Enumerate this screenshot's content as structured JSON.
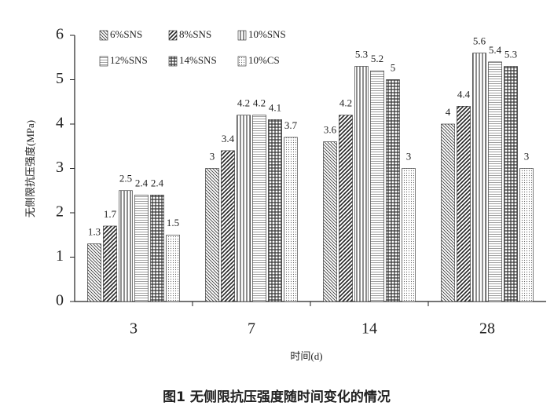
{
  "chart_data": {
    "type": "bar",
    "caption": "图1  无侧限抗压强度随时间变化的情况",
    "x_label": "时间(d)",
    "y_label": "无侧限抗压强度(MPa)",
    "categories": [
      "3",
      "7",
      "14",
      "28"
    ],
    "series": [
      {
        "name": "6%SNS",
        "color": "#222222",
        "values": [
          1.3,
          3,
          3.6,
          4
        ]
      },
      {
        "name": "8%SNS",
        "color": "#222222",
        "values": [
          1.7,
          3.4,
          4.2,
          4.4
        ]
      },
      {
        "name": "10%SNS",
        "color": "#222222",
        "values": [
          2.5,
          4.2,
          5.3,
          5.6
        ]
      },
      {
        "name": "12%SNS",
        "color": "#222222",
        "values": [
          2.4,
          4.2,
          5.2,
          5.4
        ]
      },
      {
        "name": "14%SNS",
        "color": "#222222",
        "values": [
          2.4,
          4.1,
          5,
          5.3
        ]
      },
      {
        "name": "10%CS",
        "color": "#222222",
        "values": [
          1.5,
          3.7,
          3,
          3
        ]
      }
    ],
    "ylim": [
      0,
      6
    ],
    "yticks": [
      0,
      1,
      2,
      3,
      4,
      5,
      6
    ],
    "grid": false,
    "legend": "top-left"
  }
}
